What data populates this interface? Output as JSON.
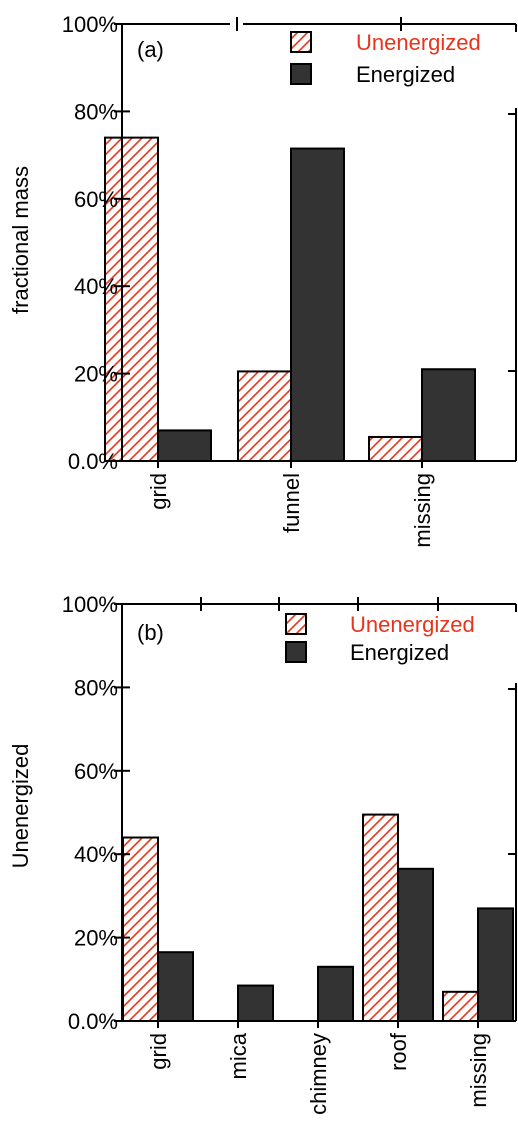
{
  "chart_data": [
    {
      "type": "bar",
      "panel_label": "(a)",
      "title": "",
      "xlabel": "",
      "ylabel": "fractional mass",
      "ylim": [
        0,
        100
      ],
      "yticks": [
        "0.0%",
        "20%",
        "40%",
        "60%",
        "80%",
        "100%"
      ],
      "categories": [
        "grid",
        "funnel",
        "missing"
      ],
      "series": [
        {
          "name": "Unenergized",
          "values": [
            74,
            20.5,
            5.5
          ]
        },
        {
          "name": "Energized",
          "values": [
            7,
            71.5,
            21
          ]
        }
      ],
      "legend": "top-right",
      "grid": false
    },
    {
      "type": "bar",
      "panel_label": "(b)",
      "title": "",
      "xlabel": "",
      "ylabel": "Unenergized",
      "ylim": [
        0,
        100
      ],
      "yticks": [
        "0.0%",
        "20%",
        "40%",
        "60%",
        "80%",
        "100%"
      ],
      "categories": [
        "grid",
        "mica",
        "chimney",
        "roof",
        "missing"
      ],
      "series": [
        {
          "name": "Unenergized",
          "values": [
            44,
            0,
            0,
            49.5,
            7
          ]
        },
        {
          "name": "Energized",
          "values": [
            16.5,
            8.5,
            13,
            36.5,
            27
          ]
        }
      ],
      "legend": "top-right",
      "grid": false
    }
  ],
  "colors": {
    "unenergized_text": "#e8341c",
    "unenergized_hatch": "#e8341c",
    "energized_fill": "#333333",
    "axis": "#000000"
  }
}
